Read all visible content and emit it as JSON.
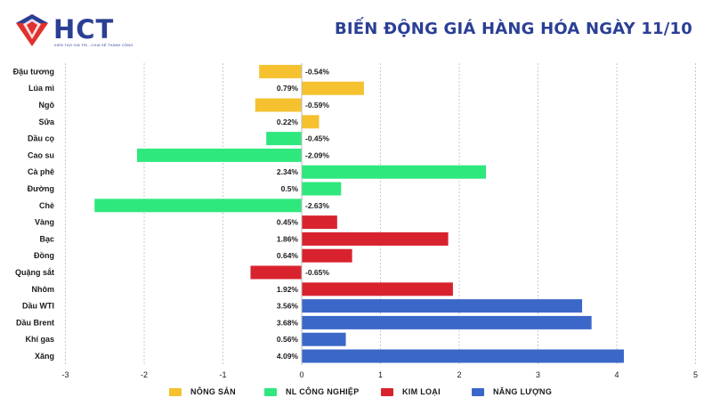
{
  "header": {
    "logo_text": "HCT",
    "logo_tagline": "KIẾN TẠO GIÁ TRỊ - CHIA SẺ THÀNH CÔNG",
    "title": "BIẾN ĐỘNG GIÁ HÀNG HÓA NGÀY 11/10"
  },
  "colors": {
    "brand": "#2b3f93",
    "logo_red": "#e0312d",
    "nong_san": "#f5c12e",
    "nl_cong_nghiep": "#2ee87d",
    "kim_loai": "#d8232f",
    "nang_luong": "#3b67c8"
  },
  "chart_data": {
    "type": "bar",
    "orientation": "horizontal",
    "title": "BIẾN ĐỘNG GIÁ HÀNG HÓA NGÀY 11/10",
    "xlim": [
      -3,
      5
    ],
    "xticks": [
      -3,
      -2,
      -1,
      0,
      1,
      2,
      3,
      4,
      5
    ],
    "grid": true,
    "legend_position": "bottom",
    "categories": [
      "Đậu tương",
      "Lúa mì",
      "Ngô",
      "Sữa",
      "Dầu cọ",
      "Cao su",
      "Cà phê",
      "Đường",
      "Chè",
      "Vàng",
      "Bạc",
      "Đồng",
      "Quặng sắt",
      "Nhôm",
      "Dầu WTI",
      "Dầu Brent",
      "Khí gas",
      "Xăng"
    ],
    "values": [
      -0.54,
      0.79,
      -0.59,
      0.22,
      -0.45,
      -2.09,
      2.34,
      0.5,
      -2.63,
      0.45,
      1.86,
      0.64,
      -0.65,
      1.92,
      3.56,
      3.68,
      0.56,
      4.09
    ],
    "value_labels": [
      "-0.54%",
      "0.79%",
      "-0.59%",
      "0.22%",
      "-0.45%",
      "-2.09%",
      "2.34%",
      "0.5%",
      "-2.63%",
      "0.45%",
      "1.86%",
      "0.64%",
      "-0.65%",
      "1.92%",
      "3.56%",
      "3.68%",
      "0.56%",
      "4.09%"
    ],
    "groups": [
      0,
      0,
      0,
      0,
      1,
      1,
      1,
      1,
      1,
      2,
      2,
      2,
      2,
      2,
      3,
      3,
      3,
      3
    ],
    "series": [
      {
        "name": "NÔNG SẢN",
        "color": "#f5c12e"
      },
      {
        "name": "NL CÔNG NGHIỆP",
        "color": "#2ee87d"
      },
      {
        "name": "KIM LOẠI",
        "color": "#d8232f"
      },
      {
        "name": "NĂNG LƯỢNG",
        "color": "#3b67c8"
      }
    ]
  }
}
